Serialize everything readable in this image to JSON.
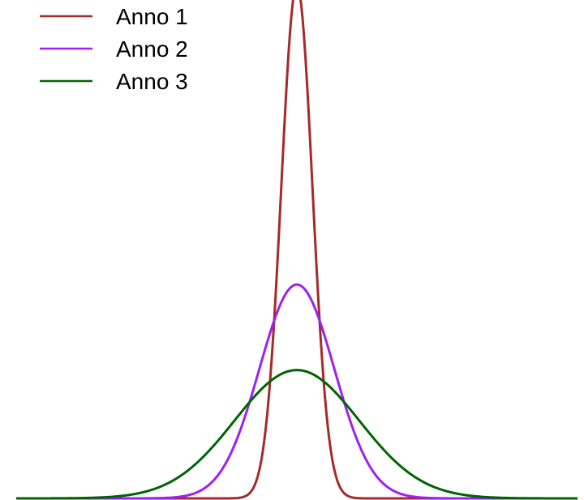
{
  "chart_data": {
    "type": "line",
    "title": "",
    "xlabel": "",
    "ylabel": "",
    "grid": false,
    "axes_visible": false,
    "legend_position": "top-left",
    "xlim": [
      -4.5,
      4.5
    ],
    "ylim": [
      0,
      1.6
    ],
    "series": [
      {
        "name": "Anno 1",
        "color": "#a52a2a",
        "distribution": "normal",
        "mean": 0,
        "sd": 0.25
      },
      {
        "name": "Anno 2",
        "color": "#a020f0",
        "distribution": "normal",
        "mean": 0,
        "sd": 0.6
      },
      {
        "name": "Anno 3",
        "color": "#006400",
        "distribution": "normal",
        "mean": 0,
        "sd": 1.0
      }
    ]
  }
}
